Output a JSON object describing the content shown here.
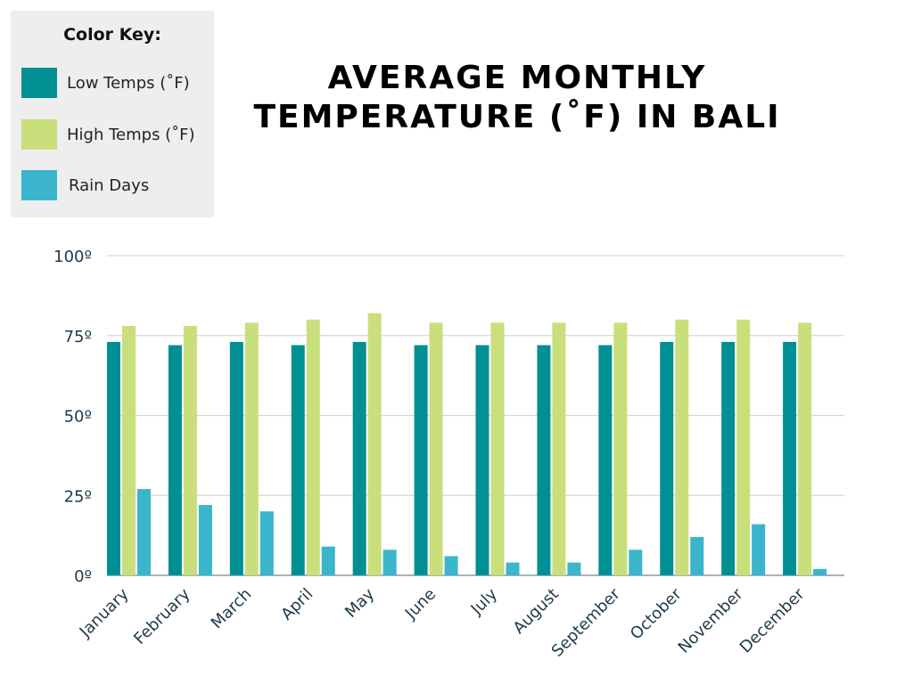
{
  "legend": {
    "title": "Color Key:",
    "items": [
      {
        "label": "Low Temps (˚F)",
        "color": "#009093"
      },
      {
        "label": "High Temps (˚F)",
        "color": "#c8df7b"
      },
      {
        "label": "Rain Days",
        "color": "#3ab5cc"
      }
    ]
  },
  "chart_data": {
    "type": "bar",
    "title": "AVERAGE MONTHLY TEMPERATURE (˚F) IN BALI",
    "categories": [
      "January",
      "February",
      "March",
      "April",
      "May",
      "June",
      "July",
      "August",
      "September",
      "October",
      "November",
      "December"
    ],
    "series": [
      {
        "name": "Low Temps (˚F)",
        "color": "#009093",
        "values": [
          73,
          72,
          73,
          72,
          73,
          72,
          72,
          72,
          72,
          73,
          73,
          73
        ]
      },
      {
        "name": "High Temps (˚F)",
        "color": "#c8df7b",
        "values": [
          78,
          78,
          79,
          80,
          82,
          79,
          79,
          79,
          79,
          80,
          80,
          79
        ]
      },
      {
        "name": "Rain Days",
        "color": "#3ab5cc",
        "values": [
          27,
          22,
          20,
          9,
          8,
          6,
          4,
          4,
          8,
          12,
          16,
          2
        ]
      }
    ],
    "ylim": [
      0,
      100
    ],
    "yticks": [
      0,
      25,
      50,
      75,
      100
    ],
    "ytick_labels": [
      "0º",
      "25º",
      "50º",
      "75º",
      "100º"
    ],
    "grid": true,
    "legend_position": "top-left"
  }
}
